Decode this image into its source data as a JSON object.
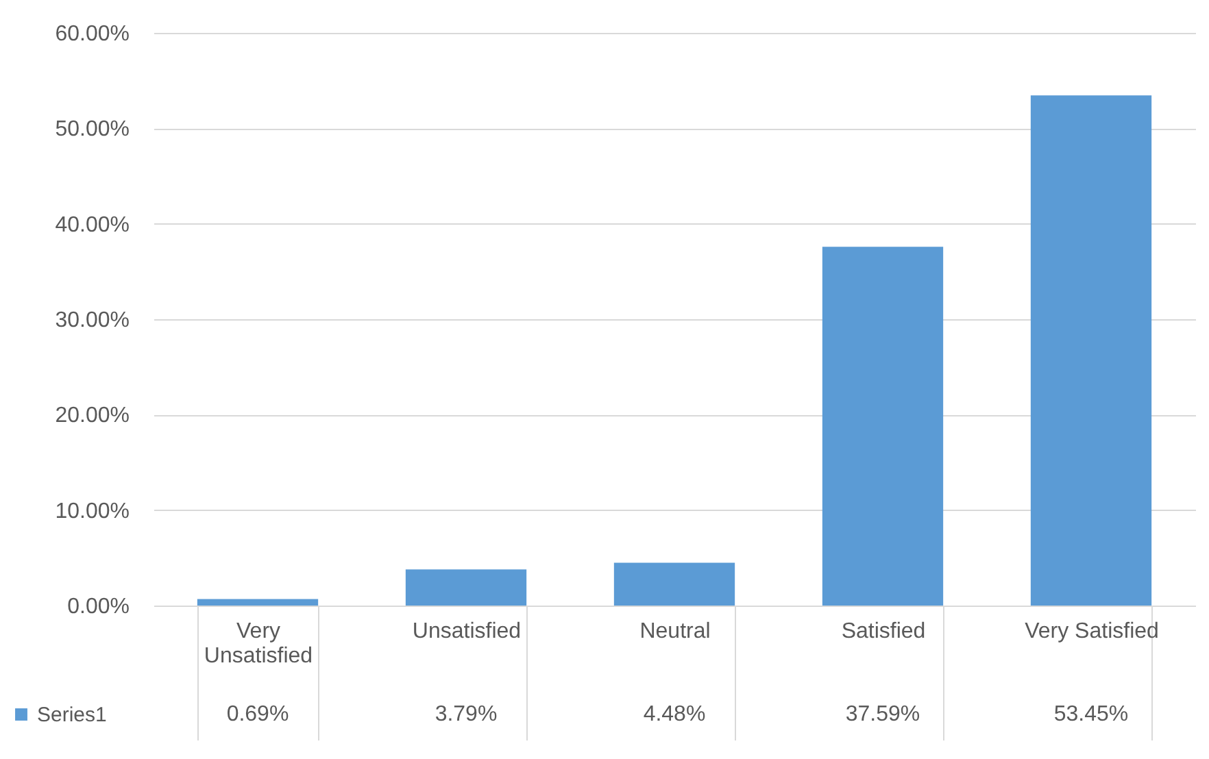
{
  "chart_data": {
    "type": "bar",
    "categories": [
      "Very Unsatisfied",
      "Unsatisfied",
      "Neutral",
      "Satisfied",
      "Very Satisfied"
    ],
    "series": [
      {
        "name": "Series1",
        "color": "#5b9bd5",
        "values": [
          0.69,
          3.79,
          4.48,
          37.59,
          53.45
        ],
        "value_labels": [
          "0.69%",
          "3.79%",
          "4.48%",
          "37.59%",
          "53.45%"
        ]
      }
    ],
    "ylim": [
      0,
      60
    ],
    "yticks": [
      {
        "value": 0,
        "label": "0.00%"
      },
      {
        "value": 10,
        "label": "10.00%"
      },
      {
        "value": 20,
        "label": "20.00%"
      },
      {
        "value": 30,
        "label": "30.00%"
      },
      {
        "value": 40,
        "label": "40.00%"
      },
      {
        "value": 50,
        "label": "50.00%"
      },
      {
        "value": 60,
        "label": "60.00%"
      }
    ],
    "grid": "y",
    "legend": "bottom left"
  }
}
